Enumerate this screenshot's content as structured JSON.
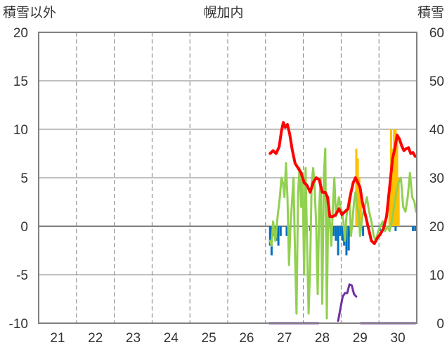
{
  "chart_data": {
    "type": "line",
    "title": "幌加内",
    "left_axis_label": "積雪以外",
    "right_axis_label": "積雪",
    "x_ticks": [
      "21",
      "22",
      "23",
      "24",
      "25",
      "26",
      "27",
      "28",
      "29",
      "30"
    ],
    "y_left_ticks": [
      "20",
      "15",
      "10",
      "5",
      "0",
      "-5",
      "-10"
    ],
    "y_right_ticks": [
      "60",
      "50",
      "40",
      "30",
      "20",
      "10",
      "0"
    ],
    "ylim_left": [
      -10,
      20
    ],
    "ylim_right": [
      0,
      60
    ],
    "xlim": [
      20.5,
      30.5
    ],
    "grid": true,
    "colors": {
      "red": "#ff0000",
      "green": "#92d050",
      "blue_bars": "#0070c0",
      "orange_bars": "#ffc000",
      "purple": "#7030a0",
      "axis": "#808080",
      "grid": "#808080"
    },
    "series": [
      {
        "axis": "left",
        "color": "red",
        "x": [
          26.62,
          26.7,
          26.78,
          26.86,
          26.92,
          26.97,
          27.02,
          27.08,
          27.14,
          27.2,
          27.28,
          27.36,
          27.44,
          27.52,
          27.6,
          27.68,
          27.76,
          27.84,
          27.92,
          28.0,
          28.08,
          28.14,
          28.2,
          28.28,
          28.36,
          28.44,
          28.52,
          28.6,
          28.68,
          28.76,
          28.82,
          28.88,
          28.94,
          29.0,
          29.06,
          29.12,
          29.18,
          29.24,
          29.3,
          29.38,
          29.46,
          29.54,
          29.62,
          29.7,
          29.78,
          29.86,
          29.92,
          29.98,
          30.04,
          30.1,
          30.16,
          30.22,
          30.28,
          30.34,
          30.4,
          30.46
        ],
        "y": [
          7.5,
          7.8,
          7.5,
          8.2,
          9.8,
          10.7,
          10.2,
          10.5,
          9.5,
          8.0,
          6.5,
          6.0,
          5.5,
          4.5,
          4.2,
          3.5,
          4.5,
          5.0,
          4.8,
          3.5,
          3.5,
          3.0,
          1.0,
          1.0,
          1.2,
          1.8,
          1.2,
          1.5,
          1.8,
          3.5,
          4.5,
          5.0,
          4.5,
          4.0,
          2.5,
          1.5,
          0.5,
          -0.5,
          -1.5,
          -1.8,
          -1.2,
          -0.8,
          -0.2,
          1.0,
          4.0,
          7.0,
          8.0,
          9.4,
          9.0,
          8.3,
          7.8,
          8.0,
          8.1,
          7.5,
          7.6,
          7.2
        ]
      },
      {
        "axis": "left",
        "color": "green",
        "x": [
          26.62,
          26.66,
          26.7,
          26.76,
          26.82,
          26.88,
          26.92,
          26.96,
          27.0,
          27.04,
          27.08,
          27.12,
          27.16,
          27.2,
          27.24,
          27.28,
          27.32,
          27.36,
          27.4,
          27.44,
          27.48,
          27.52,
          27.56,
          27.6,
          27.64,
          27.68,
          27.72,
          27.76,
          27.8,
          27.84,
          27.88,
          27.92,
          27.96,
          28.0,
          28.04,
          28.08,
          28.12,
          28.16,
          28.2,
          28.24,
          28.28,
          28.32,
          28.36,
          28.4,
          28.44,
          28.48,
          28.52,
          28.56,
          28.6,
          28.64,
          28.68,
          28.72,
          28.76,
          28.8,
          28.84,
          28.88,
          28.92,
          28.96,
          29.0,
          29.06,
          29.12,
          29.18,
          29.24,
          29.3,
          29.36,
          29.42,
          29.48,
          29.54,
          29.6,
          29.66,
          29.72,
          29.78,
          29.84,
          29.9,
          29.96,
          30.02,
          30.08,
          30.14,
          30.2,
          30.26,
          30.32,
          30.38,
          30.44,
          30.48
        ],
        "y": [
          -1.5,
          -2.0,
          0.5,
          -1.5,
          1.0,
          3.0,
          5.0,
          4.5,
          3.0,
          6.5,
          3.0,
          -4.0,
          0.0,
          2.5,
          5.0,
          -3.0,
          -9.0,
          3.5,
          6.0,
          2.0,
          5.5,
          -5.0,
          6.0,
          -2.0,
          -9.0,
          -4.0,
          4.5,
          6.0,
          4.0,
          0.0,
          -7.0,
          2.0,
          5.0,
          -8.0,
          5.0,
          8.0,
          -9.5,
          3.0,
          0.5,
          -2.0,
          2.0,
          5.0,
          1.0,
          2.0,
          3.0,
          2.0,
          1.5,
          0.5,
          -1.5,
          1.0,
          2.0,
          3.0,
          -1.0,
          0.5,
          2.5,
          3.5,
          2.0,
          1.5,
          -1.0,
          1.0,
          2.0,
          3.0,
          1.5,
          0.5,
          -1.0,
          -1.5,
          -0.5,
          0.0,
          0.5,
          -0.5,
          0.0,
          -0.5,
          0.5,
          2.0,
          3.5,
          4.5,
          5.0,
          2.0,
          1.5,
          3.0,
          5.5,
          3.0,
          2.5,
          1.5
        ]
      },
      {
        "axis": "right",
        "color": "purple",
        "x": [
          28.42,
          28.48,
          28.54,
          28.6,
          28.66,
          28.72,
          28.78,
          28.84,
          28.9
        ],
        "y": [
          0.5,
          3.0,
          5.5,
          6.2,
          6.2,
          8.0,
          7.8,
          6.0,
          5.5
        ]
      },
      {
        "axis": "right",
        "color": "purple",
        "x": [
          26.6,
          27.9
        ],
        "y": [
          0,
          0
        ]
      },
      {
        "axis": "right",
        "color": "purple",
        "x": [
          29.02,
          30.46
        ],
        "y": [
          0,
          0
        ]
      }
    ],
    "bars": [
      {
        "axis": "left",
        "color": "blue_bars",
        "x": [
          26.62,
          26.66,
          26.72,
          26.78,
          26.84,
          26.9,
          27.06,
          27.68,
          28.24,
          28.3,
          28.36,
          28.42,
          28.48,
          28.54,
          28.58,
          28.64,
          28.7,
          28.74,
          29.08,
          29.52,
          29.94,
          30.4,
          30.46
        ],
        "y": [
          -2.0,
          -3.0,
          -1.0,
          -1.5,
          -2.0,
          -1.0,
          -1.0,
          -0.5,
          -0.5,
          -1.0,
          -1.5,
          -3.0,
          -1.0,
          -1.5,
          -2.0,
          -3.0,
          -2.5,
          -1.0,
          -1.0,
          -0.5,
          -0.5,
          -0.5,
          -0.5
        ]
      },
      {
        "axis": "left",
        "color": "orange_bars",
        "x": [
          28.9,
          28.94,
          28.98,
          29.02,
          29.78,
          29.82,
          29.86,
          29.9,
          29.94,
          29.98,
          30.02
        ],
        "y": [
          8.0,
          7.0,
          5.0,
          3.0,
          3.0,
          10.0,
          8.0,
          10.0,
          10.0,
          9.0,
          5.0
        ]
      }
    ]
  }
}
